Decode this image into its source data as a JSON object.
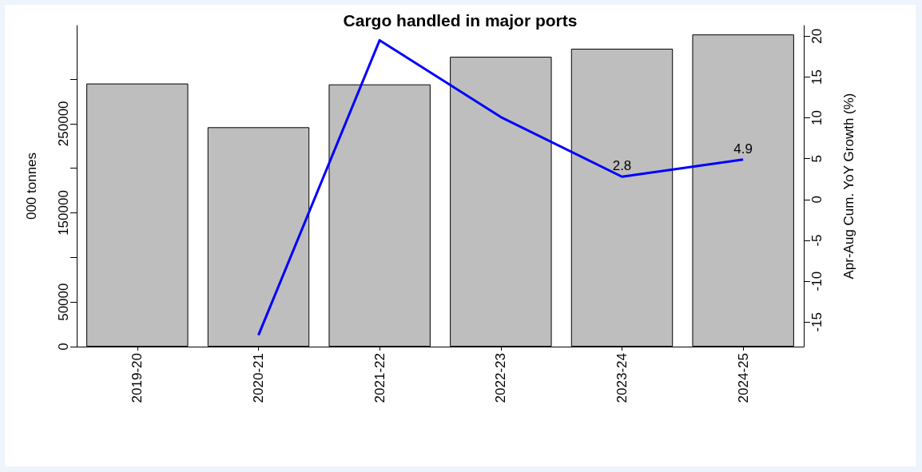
{
  "chart_data": {
    "type": "bar",
    "title": "Cargo handled in major ports",
    "ylabel": "000 tonnes",
    "y2label": "Apr-Aug Cum. YoY Growth (%)",
    "categories": [
      "2019-20",
      "2020-21",
      "2021-22",
      "2022-23",
      "2023-24",
      "2024-25"
    ],
    "series": [
      {
        "color": "#bebebe",
        "values": [
          295000,
          246000,
          294000,
          325000,
          334000,
          350000
        ]
      },
      {
        "type": "line",
        "axis": "y2",
        "color": "#0000ff",
        "values": [
          null,
          -16.6,
          19.5,
          10.1,
          2.8,
          4.9
        ],
        "value_labels": [
          null,
          null,
          null,
          null,
          "2.8",
          "4.9"
        ]
      }
    ],
    "ylim": [
      0,
      360000
    ],
    "yticks": [
      0,
      50000,
      {
        "value": 100000,
        "label": null
      },
      150000,
      {
        "value": 200000,
        "label": null
      },
      250000,
      {
        "value": 300000,
        "label": null
      }
    ],
    "y2lim": [
      -18,
      21.3
    ],
    "y2ticks": [
      -15,
      -10,
      -5,
      0,
      5,
      10,
      15,
      20
    ],
    "grid": false
  }
}
